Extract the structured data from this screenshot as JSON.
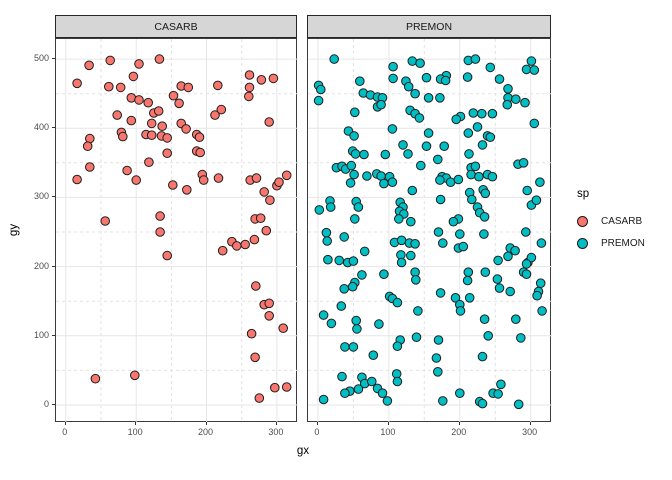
{
  "figure": {
    "x_axis_title": "gx",
    "y_axis_title": "gy"
  },
  "legend": {
    "title": "sp",
    "entries": [
      {
        "label": "CASARB",
        "color": "#F8766D"
      },
      {
        "label": "PREMON",
        "color": "#00BFC4"
      }
    ]
  },
  "chart_data": {
    "type": "scatter",
    "facet_variable": "sp",
    "xlabel": "gx",
    "ylabel": "gy",
    "x_ticks": [
      0,
      100,
      200,
      300
    ],
    "y_ticks": [
      0,
      100,
      200,
      300,
      400,
      500
    ],
    "x_minor": [
      50,
      150,
      250
    ],
    "y_minor": [
      50,
      150,
      250,
      350,
      450
    ],
    "x_range": [
      -14,
      330
    ],
    "y_range": [
      -26,
      529
    ],
    "grid": "major-solid-minor-dashed",
    "legend_position": "right",
    "point_style": {
      "radius": 4.3,
      "stroke": "#1f1f1f"
    },
    "facets": [
      {
        "label": "CASARB",
        "color": "#F8766D",
        "points": [
          [
            33,
            491
          ],
          [
            63,
            498
          ],
          [
            104,
            493
          ],
          [
            133,
            500
          ],
          [
            16,
            465
          ],
          [
            96,
            475
          ],
          [
            61,
            460
          ],
          [
            78,
            459
          ],
          [
            93,
            444
          ],
          [
            104,
            441
          ],
          [
            117,
            437
          ],
          [
            73,
            419
          ],
          [
            93,
            411
          ],
          [
            125,
            422
          ],
          [
            132,
            425
          ],
          [
            122,
            407
          ],
          [
            137,
            403
          ],
          [
            79,
            394
          ],
          [
            81,
            388
          ],
          [
            114,
            391
          ],
          [
            122,
            390
          ],
          [
            136,
            389
          ],
          [
            144,
            386
          ],
          [
            34,
            385
          ],
          [
            31,
            374
          ],
          [
            144,
            364
          ],
          [
            118,
            351
          ],
          [
            34,
            344
          ],
          [
            87,
            339
          ],
          [
            16,
            326
          ],
          [
            100,
            325
          ],
          [
            56,
            266
          ],
          [
            134,
            273
          ],
          [
            261,
            477
          ],
          [
            278,
            470
          ],
          [
            295,
            472
          ],
          [
            164,
            461
          ],
          [
            174,
            459
          ],
          [
            216,
            462
          ],
          [
            261,
            459
          ],
          [
            153,
            447
          ],
          [
            260,
            446
          ],
          [
            161,
            436
          ],
          [
            212,
            419
          ],
          [
            221,
            427
          ],
          [
            289,
            409
          ],
          [
            164,
            407
          ],
          [
            171,
            399
          ],
          [
            186,
            391
          ],
          [
            190,
            387
          ],
          [
            186,
            367
          ],
          [
            191,
            365
          ],
          [
            194,
            333
          ],
          [
            196,
            325
          ],
          [
            217,
            328
          ],
          [
            152,
            318
          ],
          [
            172,
            311
          ],
          [
            262,
            325
          ],
          [
            271,
            328
          ],
          [
            300,
            317
          ],
          [
            303,
            322
          ],
          [
            314,
            332
          ],
          [
            282,
            308
          ],
          [
            290,
            296
          ],
          [
            269,
            269
          ],
          [
            277,
            270
          ],
          [
            134,
            250
          ],
          [
            144,
            216
          ],
          [
            42,
            38
          ],
          [
            98,
            43
          ],
          [
            223,
            223
          ],
          [
            236,
            236
          ],
          [
            243,
            230
          ],
          [
            255,
            232
          ],
          [
            268,
            239
          ],
          [
            285,
            252
          ],
          [
            270,
            172
          ],
          [
            282,
            145
          ],
          [
            289,
            147
          ],
          [
            289,
            129
          ],
          [
            309,
            111
          ],
          [
            264,
            103
          ],
          [
            269,
            69
          ],
          [
            275,
            10
          ],
          [
            297,
            25
          ],
          [
            314,
            26
          ]
        ]
      },
      {
        "label": "PREMON",
        "color": "#00BFC4",
        "points": [
          [
            23,
            500
          ],
          [
            106,
            489
          ],
          [
            133,
            497
          ],
          [
            144,
            494
          ],
          [
            106,
            472
          ],
          [
            59,
            468
          ],
          [
            124,
            468
          ],
          [
            153,
            473
          ],
          [
            1,
            462
          ],
          [
            4,
            456
          ],
          [
            64,
            451
          ],
          [
            74,
            448
          ],
          [
            84,
            445
          ],
          [
            91,
            444
          ],
          [
            1,
            440
          ],
          [
            128,
            460
          ],
          [
            137,
            450
          ],
          [
            84,
            431
          ],
          [
            89,
            434
          ],
          [
            52,
            423
          ],
          [
            130,
            426
          ],
          [
            137,
            421
          ],
          [
            143,
            415
          ],
          [
            43,
            396
          ],
          [
            51,
            389
          ],
          [
            105,
            399
          ],
          [
            49,
            367
          ],
          [
            53,
            363
          ],
          [
            65,
            362
          ],
          [
            95,
            362
          ],
          [
            120,
            376
          ],
          [
            127,
            363
          ],
          [
            153,
            374
          ],
          [
            26,
            343
          ],
          [
            34,
            345
          ],
          [
            39,
            341
          ],
          [
            47,
            346
          ],
          [
            51,
            333
          ],
          [
            69,
            331
          ],
          [
            83,
            334
          ],
          [
            89,
            331
          ],
          [
            101,
            330
          ],
          [
            46,
            321
          ],
          [
            93,
            320
          ],
          [
            105,
            322
          ],
          [
            133,
            310
          ],
          [
            145,
            346
          ],
          [
            17,
            295
          ],
          [
            2,
            282
          ],
          [
            18,
            286
          ],
          [
            54,
            294
          ],
          [
            57,
            286
          ],
          [
            52,
            269
          ],
          [
            116,
            293
          ],
          [
            120,
            286
          ],
          [
            115,
            280
          ],
          [
            121,
            276
          ],
          [
            114,
            269
          ],
          [
            131,
            265
          ],
          [
            212,
            498
          ],
          [
            222,
            500
          ],
          [
            243,
            488
          ],
          [
            211,
            474
          ],
          [
            181,
            476
          ],
          [
            173,
            471
          ],
          [
            180,
            469
          ],
          [
            256,
            471
          ],
          [
            301,
            497
          ],
          [
            294,
            485
          ],
          [
            305,
            484
          ],
          [
            268,
            457
          ],
          [
            156,
            444
          ],
          [
            172,
            444
          ],
          [
            268,
            444
          ],
          [
            267,
            434
          ],
          [
            279,
            442
          ],
          [
            292,
            437
          ],
          [
            219,
            422
          ],
          [
            231,
            421
          ],
          [
            201,
            417
          ],
          [
            195,
            413
          ],
          [
            246,
            421
          ],
          [
            305,
            407
          ],
          [
            225,
            402
          ],
          [
            212,
            393
          ],
          [
            239,
            389
          ],
          [
            243,
            387
          ],
          [
            232,
            376
          ],
          [
            156,
            393
          ],
          [
            178,
            374
          ],
          [
            169,
            355
          ],
          [
            213,
            363
          ],
          [
            216,
            343
          ],
          [
            222,
            345
          ],
          [
            216,
            333
          ],
          [
            227,
            330
          ],
          [
            175,
            330
          ],
          [
            181,
            328
          ],
          [
            172,
            325
          ],
          [
            187,
            322
          ],
          [
            198,
            326
          ],
          [
            239,
            333
          ],
          [
            246,
            330
          ],
          [
            282,
            348
          ],
          [
            290,
            350
          ],
          [
            313,
            322
          ],
          [
            295,
            310
          ],
          [
            233,
            311
          ],
          [
            236,
            306
          ],
          [
            214,
            307
          ],
          [
            217,
            297
          ],
          [
            173,
            297
          ],
          [
            225,
            286
          ],
          [
            228,
            278
          ],
          [
            301,
            289
          ],
          [
            308,
            296
          ],
          [
            198,
            269
          ],
          [
            191,
            265
          ],
          [
            235,
            272
          ],
          [
            12,
            249
          ],
          [
            13,
            237
          ],
          [
            37,
            243
          ],
          [
            14,
            210
          ],
          [
            30,
            209
          ],
          [
            42,
            206
          ],
          [
            50,
            208
          ],
          [
            66,
            222
          ],
          [
            108,
            235
          ],
          [
            118,
            238
          ],
          [
            129,
            234
          ],
          [
            137,
            233
          ],
          [
            117,
            217
          ],
          [
            131,
            216
          ],
          [
            118,
            206
          ],
          [
            137,
            192
          ],
          [
            138,
            181
          ],
          [
            62,
            188
          ],
          [
            93,
            189
          ],
          [
            52,
            177
          ],
          [
            37,
            168
          ],
          [
            49,
            171
          ],
          [
            101,
            157
          ],
          [
            105,
            154
          ],
          [
            112,
            148
          ],
          [
            33,
            143
          ],
          [
            8,
            130
          ],
          [
            19,
            118
          ],
          [
            54,
            122
          ],
          [
            55,
            110
          ],
          [
            86,
            117
          ],
          [
            141,
            136
          ],
          [
            116,
            94
          ],
          [
            112,
            85
          ],
          [
            139,
            98
          ],
          [
            38,
            84
          ],
          [
            50,
            84
          ],
          [
            78,
            72
          ],
          [
            34,
            41
          ],
          [
            62,
            40
          ],
          [
            66,
            31
          ],
          [
            76,
            34
          ],
          [
            57,
            23
          ],
          [
            45,
            20
          ],
          [
            38,
            17
          ],
          [
            84,
            24
          ],
          [
            91,
            17
          ],
          [
            98,
            6
          ],
          [
            8,
            8
          ],
          [
            111,
            45
          ],
          [
            112,
            34
          ],
          [
            170,
            250
          ],
          [
            176,
            234
          ],
          [
            200,
            247
          ],
          [
            234,
            247
          ],
          [
            198,
            227
          ],
          [
            205,
            229
          ],
          [
            293,
            250
          ],
          [
            315,
            234
          ],
          [
            271,
            227
          ],
          [
            278,
            223
          ],
          [
            268,
            215
          ],
          [
            254,
            209
          ],
          [
            296,
            206
          ],
          [
            301,
            213
          ],
          [
            212,
            192
          ],
          [
            236,
            192
          ],
          [
            211,
            180
          ],
          [
            253,
            182
          ],
          [
            290,
            192
          ],
          [
            294,
            189
          ],
          [
            294,
            204
          ],
          [
            256,
            169
          ],
          [
            271,
            164
          ],
          [
            173,
            162
          ],
          [
            194,
            155
          ],
          [
            200,
            145
          ],
          [
            214,
            155
          ],
          [
            201,
            136
          ],
          [
            314,
            176
          ],
          [
            311,
            164
          ],
          [
            309,
            158
          ],
          [
            316,
            136
          ],
          [
            235,
            124
          ],
          [
            279,
            124
          ],
          [
            170,
            94
          ],
          [
            240,
            100
          ],
          [
            286,
            97
          ],
          [
            167,
            68
          ],
          [
            232,
            70
          ],
          [
            169,
            48
          ],
          [
            258,
            30
          ],
          [
            247,
            17
          ],
          [
            254,
            16
          ],
          [
            176,
            6
          ],
          [
            200,
            17
          ],
          [
            228,
            5
          ],
          [
            232,
            2
          ],
          [
            283,
            1
          ]
        ]
      }
    ]
  }
}
